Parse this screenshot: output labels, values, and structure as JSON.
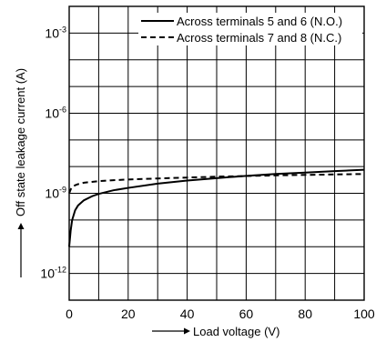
{
  "chart_data": {
    "type": "line",
    "title": "",
    "xlabel": "Load voltage (V)",
    "ylabel": "Off state leakage current (A)",
    "xlim": [
      0,
      100
    ],
    "ylim_log10": [
      -13,
      -2
    ],
    "y_scale": "log",
    "grid": true,
    "legend_placement": "top-right",
    "x_ticks": [
      0,
      20,
      40,
      60,
      80,
      100
    ],
    "x_tick_labels": [
      "0",
      "20",
      "40",
      "60",
      "80",
      "100"
    ],
    "y_tick_labels": [
      {
        "value": 0.001,
        "base": "10",
        "exp": "-3"
      },
      {
        "value": 1e-06,
        "base": "10",
        "exp": "-6"
      },
      {
        "value": 1e-09,
        "base": "10",
        "exp": "-9"
      },
      {
        "value": 1e-12,
        "base": "10",
        "exp": "-12"
      }
    ],
    "series": [
      {
        "name": "Across terminals 5 and 6 (N.O.)",
        "style": "solid",
        "x": [
          0,
          0.5,
          1,
          2,
          3,
          5,
          8,
          10,
          15,
          20,
          30,
          40,
          50,
          60,
          70,
          80,
          90,
          100
        ],
        "y": [
          1e-11,
          4e-11,
          1e-10,
          2.3e-10,
          3.5e-10,
          5.5e-10,
          8e-10,
          9.5e-10,
          1.3e-09,
          1.6e-09,
          2.3e-09,
          3e-09,
          3.7e-09,
          4.5e-09,
          5.3e-09,
          6e-09,
          6.8e-09,
          7.6e-09
        ]
      },
      {
        "name": "Across terminals 7 and 8 (N.C.)",
        "style": "dashed",
        "x": [
          0,
          0.5,
          1,
          2,
          3,
          5,
          8,
          10,
          15,
          20,
          30,
          40,
          50,
          60,
          70,
          80,
          90,
          100
        ],
        "y": [
          1e-09,
          1.4e-09,
          1.7e-09,
          2e-09,
          2.2e-09,
          2.5e-09,
          2.7e-09,
          2.85e-09,
          3.1e-09,
          3.3e-09,
          3.6e-09,
          3.9e-09,
          4.2e-09,
          4.45e-09,
          4.7e-09,
          4.9e-09,
          5.1e-09,
          5.3e-09
        ]
      }
    ],
    "colors": {
      "line": "#000000",
      "grid": "#000000",
      "background": "#ffffff"
    }
  }
}
